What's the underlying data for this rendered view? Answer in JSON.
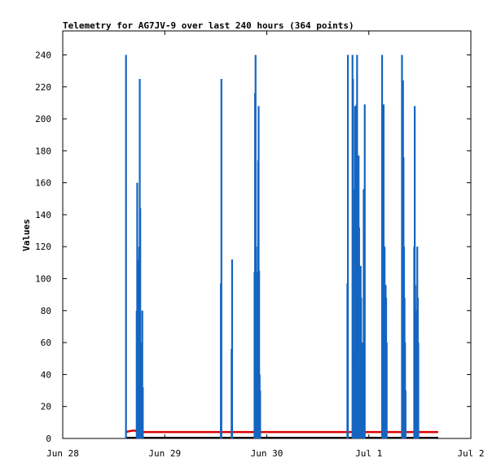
{
  "chart_data": {
    "type": "bar",
    "title": "Telemetry for AG7JV-9 over last 240 hours (364 points)",
    "xlabel": "",
    "ylabel": "Values",
    "xlim": [
      "Jun 28",
      "Jul 2"
    ],
    "ylim": [
      0,
      255
    ],
    "grid": false,
    "x_ticks": [
      "Jun 28",
      "Jun 29",
      "Jun 30",
      "Jul 1",
      "Jul 2"
    ],
    "y_ticks": [
      0,
      20,
      40,
      60,
      80,
      100,
      120,
      140,
      160,
      180,
      200,
      220,
      240
    ],
    "colors": {
      "spikes": "#1565c0",
      "level": "#dd0000",
      "baseline": "#000000",
      "frame": "#000000"
    },
    "spike_series": {
      "x_days": [
        0.62,
        0.725,
        0.73,
        0.735,
        0.74,
        0.745,
        0.75,
        0.755,
        0.76,
        0.765,
        0.77,
        0.78,
        0.785,
        1.55,
        1.555,
        1.655,
        1.66,
        1.88,
        1.885,
        1.89,
        1.895,
        1.9,
        1.905,
        1.915,
        1.92,
        1.925,
        1.93,
        1.935,
        2.79,
        2.795,
        2.84,
        2.845,
        2.855,
        2.86,
        2.865,
        2.87,
        2.875,
        2.88,
        2.885,
        2.89,
        2.895,
        2.9,
        2.905,
        2.91,
        2.915,
        2.92,
        2.925,
        2.93,
        2.935,
        2.945,
        2.95,
        2.96,
        3.13,
        3.135,
        3.14,
        3.145,
        3.15,
        3.155,
        3.16,
        3.165,
        3.17,
        3.175,
        3.325,
        3.33,
        3.335,
        3.34,
        3.345,
        3.35,
        3.355,
        3.36,
        3.445,
        3.45,
        3.455,
        3.46,
        3.465,
        3.47,
        3.475,
        3.48,
        3.485
      ],
      "values": [
        240,
        80,
        160,
        112,
        24,
        72,
        120,
        225,
        144,
        32,
        60,
        80,
        32,
        97,
        225,
        56,
        112,
        104,
        216,
        240,
        120,
        104,
        35,
        174,
        208,
        105,
        40,
        30,
        97,
        240,
        240,
        225,
        52,
        156,
        208,
        104,
        168,
        209,
        240,
        120,
        88,
        177,
        132,
        44,
        40,
        108,
        88,
        48,
        60,
        52,
        156,
        209,
        240,
        56,
        112,
        209,
        40,
        120,
        32,
        96,
        88,
        60,
        240,
        208,
        224,
        176,
        120,
        88,
        60,
        30,
        120,
        208,
        96,
        56,
        40,
        80,
        120,
        88,
        60
      ]
    },
    "level_series": {
      "x_days": [
        0.62,
        0.65,
        0.7,
        0.75,
        1.5,
        2.8,
        3.68
      ],
      "values": [
        4,
        4.5,
        5,
        4,
        4,
        4,
        4
      ]
    },
    "baseline_series": {
      "x_days": [
        0.62,
        3.68
      ],
      "values": [
        0,
        0
      ]
    }
  }
}
